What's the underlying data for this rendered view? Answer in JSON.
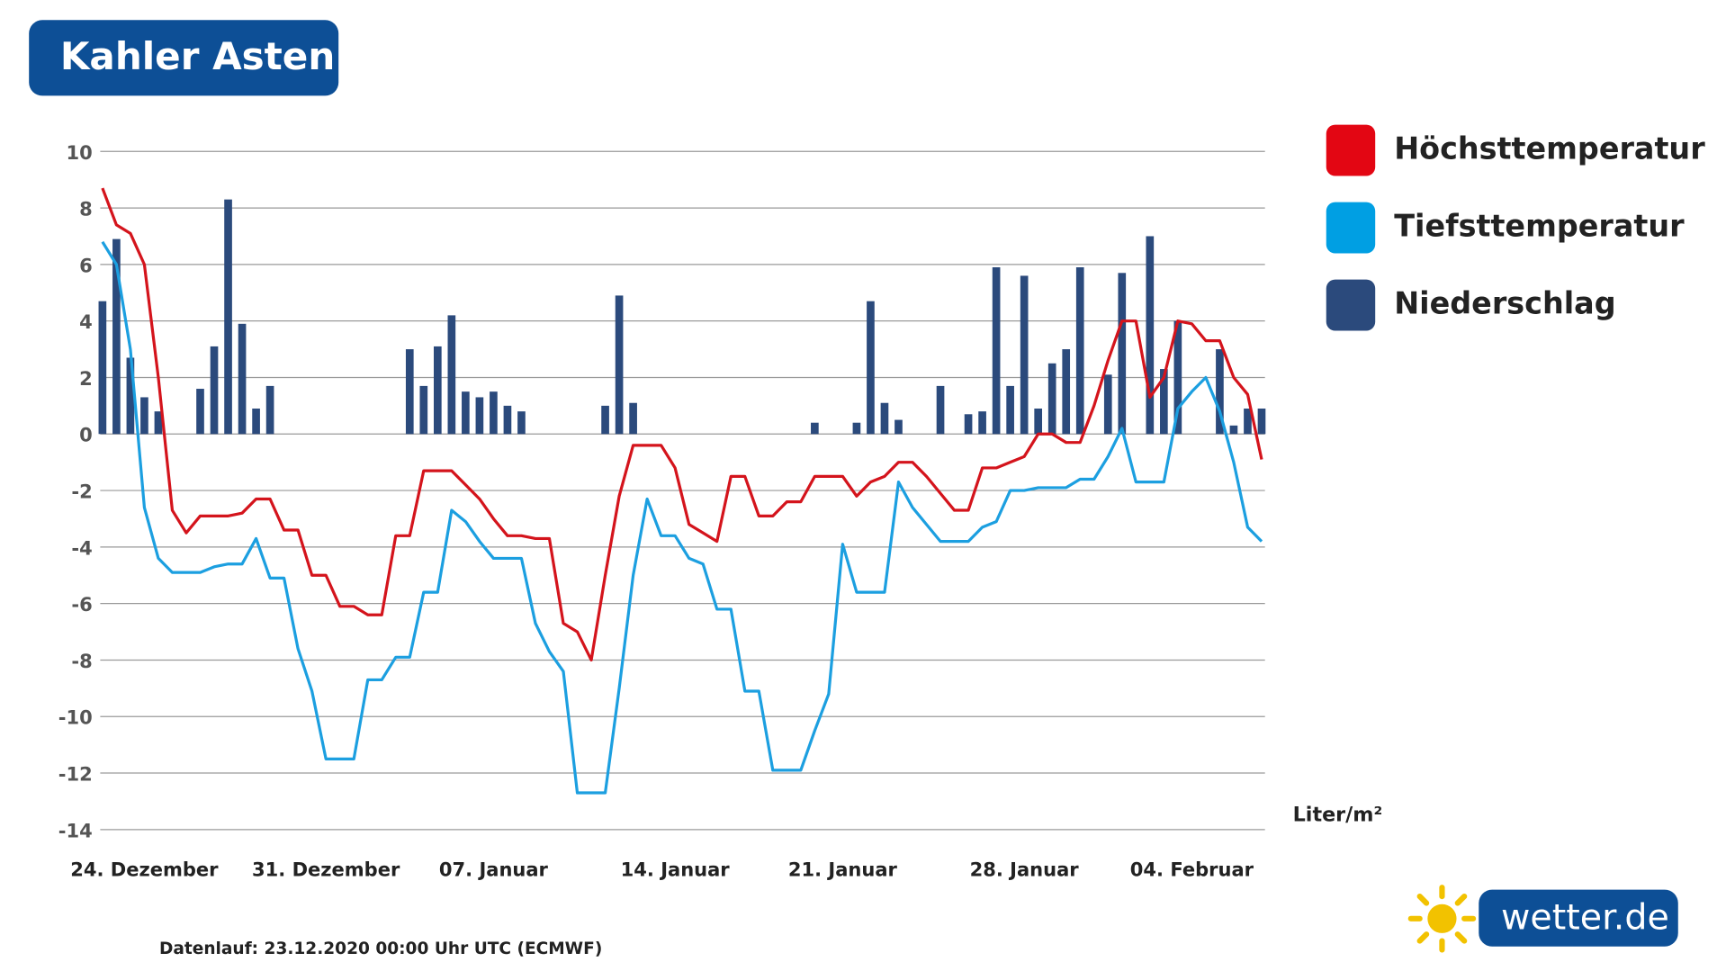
{
  "chart_data": {
    "type": "combo",
    "title": "Kahler Asten",
    "footnote": "Datenlauf: 23.12.2020 00:00 Uhr UTC (ECMWF)",
    "bar_unit_label": "Liter/m²",
    "logo_text": "wetter.de",
    "categories": [
      null,
      null,
      null,
      "24. Dezember",
      null,
      null,
      null,
      null,
      null,
      null,
      null,
      null,
      null,
      null,
      null,
      null,
      "31. Dezember",
      null,
      null,
      null,
      null,
      null,
      null,
      null,
      null,
      null,
      null,
      null,
      "07. Januar",
      null,
      null,
      null,
      null,
      null,
      null,
      null,
      null,
      null,
      null,
      null,
      null,
      "14. Januar",
      null,
      null,
      null,
      null,
      null,
      null,
      null,
      null,
      null,
      null,
      null,
      "21. Januar",
      null,
      null,
      null,
      null,
      null,
      null,
      null,
      null,
      null,
      null,
      null,
      null,
      "28. Januar",
      null,
      null,
      null,
      null,
      null,
      null,
      null,
      null,
      null,
      null,
      null,
      "04. Februar",
      null,
      null,
      null,
      null,
      null
    ],
    "ylim": [
      -14,
      10
    ],
    "yticks": [
      10,
      8,
      6,
      4,
      2,
      0,
      -2,
      -4,
      -6,
      -8,
      -10,
      -12,
      -14
    ],
    "grid": true,
    "series": [
      {
        "name": "Höchsttemperatur",
        "type": "line",
        "color": "#d4141c",
        "legend_color": "#e30613",
        "values": [
          8.7,
          7.4,
          7.1,
          6.0,
          2.0,
          -2.7,
          -3.5,
          -2.9,
          -2.9,
          -2.9,
          -2.8,
          -2.3,
          -2.3,
          -3.4,
          -3.4,
          -5.0,
          -5.0,
          -6.1,
          -6.1,
          -6.4,
          -6.4,
          -3.6,
          -3.6,
          -1.3,
          -1.3,
          -1.3,
          -1.8,
          -2.3,
          -3.0,
          -3.6,
          -3.6,
          -3.7,
          -3.7,
          -6.7,
          -7.0,
          -8.0,
          -5.0,
          -2.2,
          -0.4,
          -0.4,
          -0.4,
          -1.2,
          -3.2,
          -3.5,
          -3.8,
          -1.5,
          -1.5,
          -2.9,
          -2.9,
          -2.4,
          -2.4,
          -1.5,
          -1.5,
          -1.5,
          -2.2,
          -1.7,
          -1.5,
          -1.0,
          -1.0,
          -1.5,
          -2.1,
          -2.7,
          -2.7,
          -1.2,
          -1.2,
          -1.0,
          -0.8,
          0.0,
          0.0,
          -0.3,
          -0.3,
          1.0,
          2.6,
          4.0,
          4.0,
          1.3,
          2.0,
          4.0,
          3.9,
          3.3,
          3.3,
          2.0,
          1.4,
          -0.9
        ]
      },
      {
        "name": "Tiefsttemperatur",
        "type": "line",
        "color": "#1c9fe0",
        "legend_color": "#009fe3",
        "values": [
          6.8,
          6.0,
          3.0,
          -2.6,
          -4.4,
          -4.9,
          -4.9,
          -4.9,
          -4.7,
          -4.6,
          -4.6,
          -3.7,
          -5.1,
          -5.1,
          -7.6,
          -9.1,
          -11.5,
          -11.5,
          -11.5,
          -8.7,
          -8.7,
          -7.9,
          -7.9,
          -5.6,
          -5.6,
          -2.7,
          -3.1,
          -3.8,
          -4.4,
          -4.4,
          -4.4,
          -6.7,
          -7.7,
          -8.4,
          -12.7,
          -12.7,
          -12.7,
          -9.0,
          -5.0,
          -2.3,
          -3.6,
          -3.6,
          -4.4,
          -4.6,
          -6.2,
          -6.2,
          -9.1,
          -9.1,
          -11.9,
          -11.9,
          -11.9,
          -10.5,
          -9.2,
          -3.9,
          -5.6,
          -5.6,
          -5.6,
          -1.7,
          -2.6,
          -3.2,
          -3.8,
          -3.8,
          -3.8,
          -3.3,
          -3.1,
          -2.0,
          -2.0,
          -1.9,
          -1.9,
          -1.9,
          -1.6,
          -1.6,
          -0.8,
          0.2,
          -1.7,
          -1.7,
          -1.7,
          0.9,
          1.5,
          2.0,
          0.8,
          -1.0,
          -3.3,
          -3.8
        ]
      },
      {
        "name": "Niederschlag",
        "type": "bar",
        "color": "#2b4a7c",
        "legend_color": "#2b4a7c",
        "values": [
          4.7,
          6.9,
          2.7,
          1.3,
          0.8,
          null,
          null,
          1.6,
          3.1,
          8.3,
          3.9,
          0.9,
          1.7,
          null,
          null,
          null,
          null,
          null,
          null,
          null,
          null,
          null,
          3.0,
          1.7,
          3.1,
          4.2,
          1.5,
          1.3,
          1.5,
          1.0,
          0.8,
          null,
          null,
          null,
          null,
          null,
          1.0,
          4.9,
          1.1,
          null,
          null,
          null,
          null,
          null,
          null,
          null,
          null,
          null,
          null,
          null,
          null,
          0.4,
          null,
          null,
          0.4,
          4.7,
          1.1,
          0.5,
          null,
          null,
          1.7,
          null,
          0.7,
          0.8,
          5.9,
          1.7,
          5.6,
          0.9,
          2.5,
          3.0,
          5.9,
          null,
          2.1,
          5.7,
          null,
          7.0,
          2.3,
          4.0,
          null,
          null,
          3.0,
          0.3,
          0.9,
          0.9
        ]
      }
    ]
  }
}
